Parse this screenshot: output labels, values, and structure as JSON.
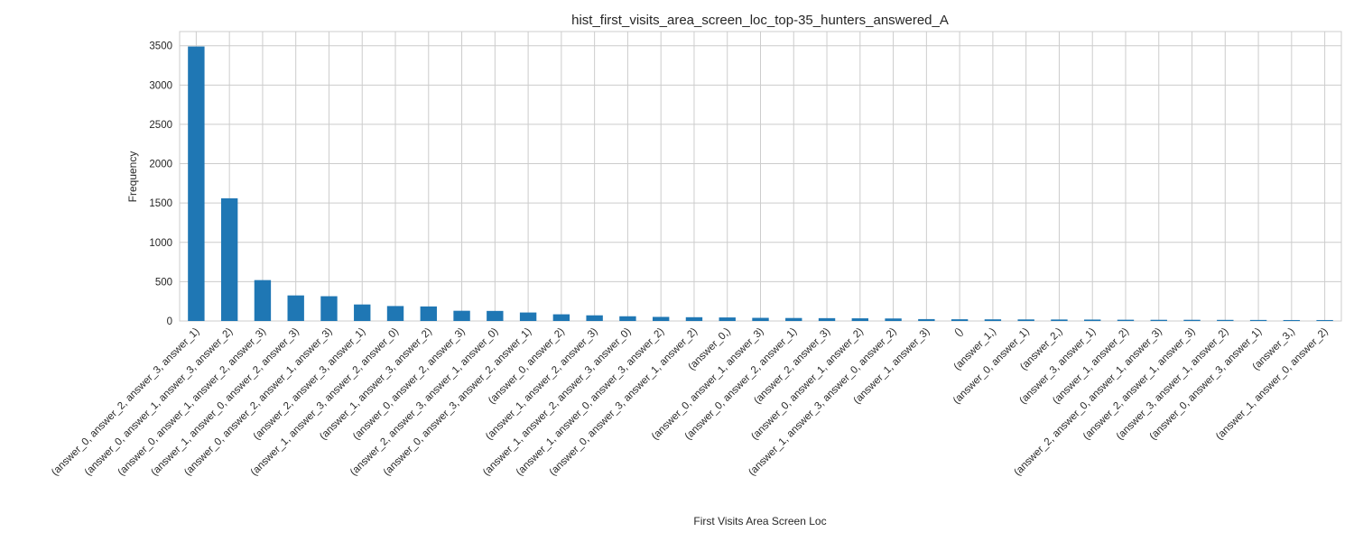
{
  "chart_data": {
    "type": "bar",
    "title": "hist_first_visits_area_screen_loc_top-35_hunters_answered_A",
    "xlabel": "First Visits Area Screen Loc",
    "ylabel": "Frequency",
    "ylim": [
      0,
      3680
    ],
    "yticks": [
      0,
      500,
      1000,
      1500,
      2000,
      2500,
      3000,
      3500
    ],
    "grid": true,
    "bar_color": "#1f77b4",
    "categories": [
      "(answer_0, answer_2, answer_3, answer_1)",
      "(answer_0, answer_1, answer_3, answer_2)",
      "(answer_0, answer_1, answer_2, answer_3)",
      "(answer_1, answer_0, answer_2, answer_3)",
      "(answer_0, answer_2, answer_1, answer_3)",
      "(answer_2, answer_3, answer_1)",
      "(answer_1, answer_3, answer_2, answer_0)",
      "(answer_1, answer_3, answer_2)",
      "(answer_0, answer_2, answer_3)",
      "(answer_2, answer_3, answer_1, answer_0)",
      "(answer_0, answer_3, answer_2, answer_1)",
      "(answer_0, answer_2)",
      "(answer_1, answer_2, answer_3)",
      "(answer_1, answer_2, answer_3, answer_0)",
      "(answer_1, answer_0, answer_3, answer_2)",
      "(answer_0, answer_3, answer_1, answer_2)",
      "(answer_0,)",
      "(answer_0, answer_1, answer_3)",
      "(answer_0, answer_2, answer_1)",
      "(answer_2, answer_3)",
      "(answer_0, answer_1, answer_2)",
      "(answer_1, answer_3, answer_0, answer_2)",
      "(answer_1, answer_3)",
      "()",
      "(answer_1,)",
      "(answer_0, answer_1)",
      "(answer_2,)",
      "(answer_3, answer_1)",
      "(answer_1, answer_2)",
      "(answer_2, answer_0, answer_1, answer_3)",
      "(answer_2, answer_1, answer_3)",
      "(answer_3, answer_1, answer_2)",
      "(answer_0, answer_3, answer_1)",
      "(answer_3,)",
      "(answer_1, answer_0, answer_2)"
    ],
    "values": [
      3490,
      1560,
      520,
      325,
      315,
      210,
      190,
      185,
      130,
      128,
      108,
      85,
      72,
      60,
      52,
      48,
      45,
      40,
      38,
      36,
      34,
      32,
      24,
      22,
      21,
      20,
      19,
      18,
      16,
      15,
      15,
      14,
      13,
      12,
      12
    ]
  }
}
